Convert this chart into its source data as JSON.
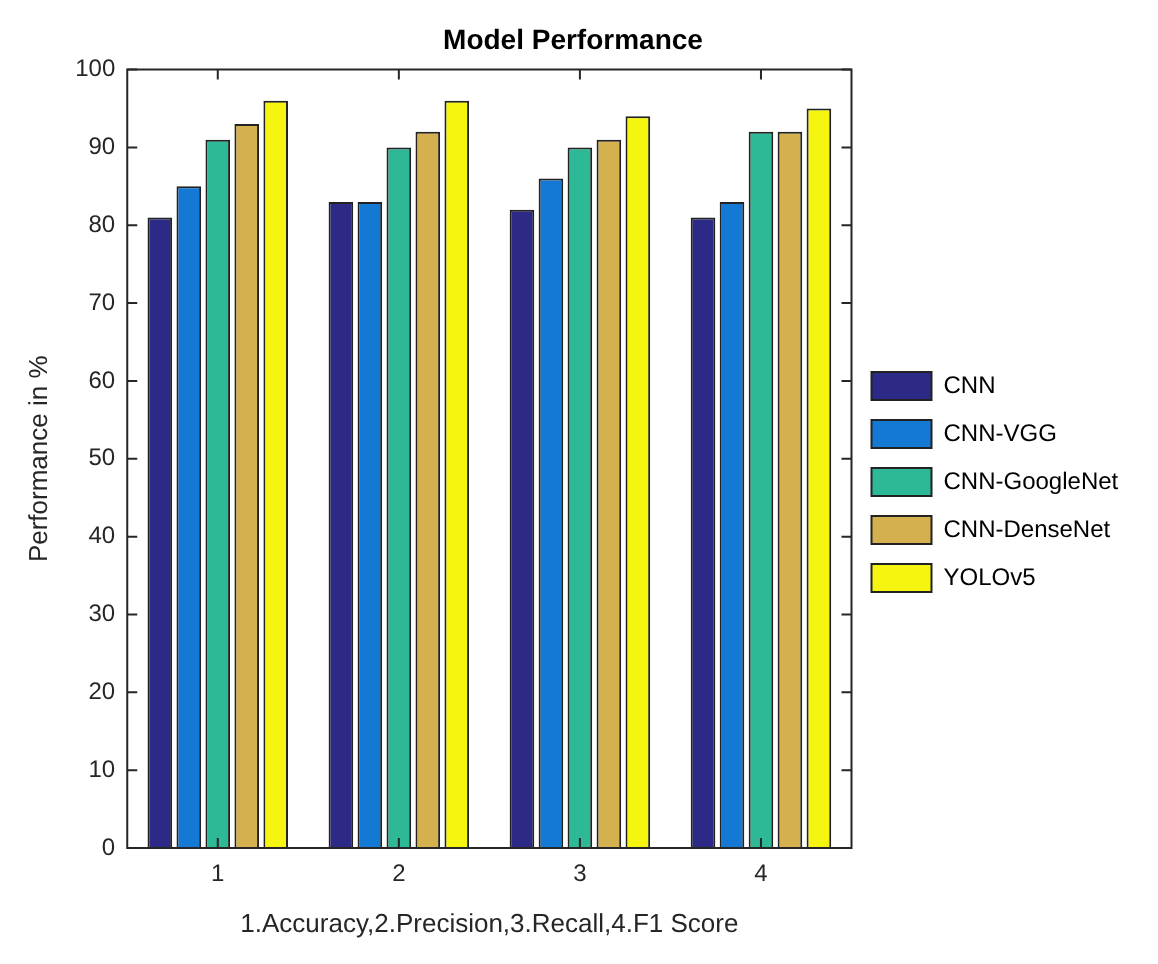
{
  "chart_data": {
    "type": "bar",
    "title": "Model Performance",
    "xlabel": "1.Accuracy,2.Precision,3.Recall,4.F1 Score",
    "ylabel": "Performance in %",
    "categories": [
      "1",
      "2",
      "3",
      "4"
    ],
    "series": [
      {
        "name": "CNN",
        "color": "#2d2a87",
        "values": [
          81,
          83,
          82,
          81
        ]
      },
      {
        "name": "CNN-VGG",
        "color": "#1479d4",
        "values": [
          85,
          83,
          86,
          83
        ]
      },
      {
        "name": "CNN-GoogleNet",
        "color": "#2db896",
        "values": [
          91,
          90,
          90,
          92
        ]
      },
      {
        "name": "CNN-DenseNet",
        "color": "#d4b04f",
        "values": [
          93,
          92,
          91,
          92
        ]
      },
      {
        "name": "YOLOv5",
        "color": "#f5f50f",
        "values": [
          96,
          96,
          94,
          95
        ]
      }
    ],
    "ylim": [
      0,
      100
    ],
    "yticks": [
      0,
      10,
      20,
      30,
      40,
      50,
      60,
      70,
      80,
      90,
      100
    ],
    "grid": false,
    "legend": "right"
  }
}
